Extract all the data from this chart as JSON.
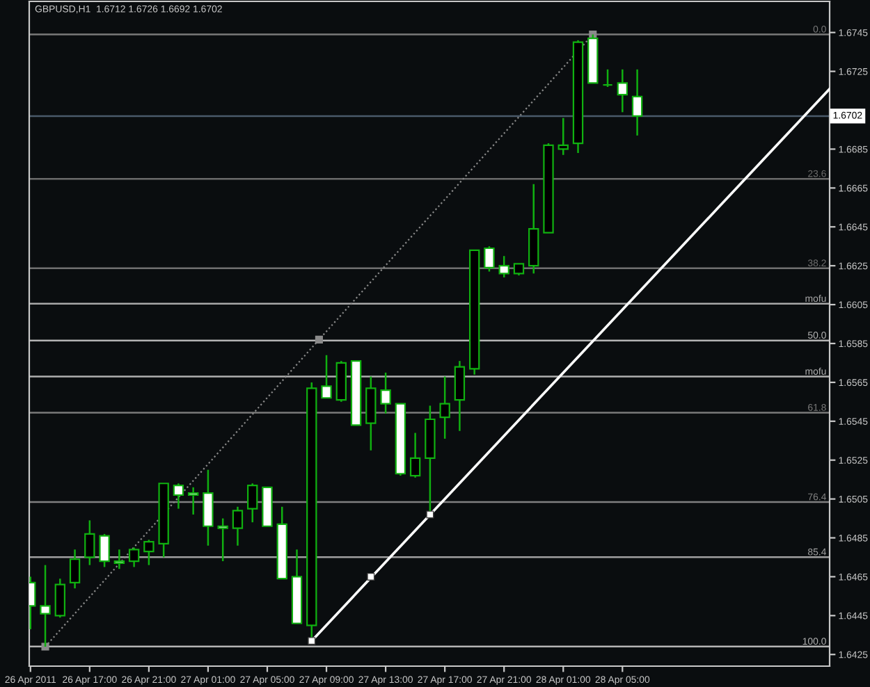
{
  "chart_data": {
    "type": "candlestick",
    "title": "GBPUSD,H1  1.6712 1.6726 1.6692 1.6702",
    "x": [
      "2011-04-26T13:00",
      "2011-04-26T14:00",
      "2011-04-26T15:00",
      "2011-04-26T16:00",
      "2011-04-26T17:00",
      "2011-04-26T18:00",
      "2011-04-26T19:00",
      "2011-04-26T20:00",
      "2011-04-26T21:00",
      "2011-04-26T22:00",
      "2011-04-26T23:00",
      "2011-04-27T00:00",
      "2011-04-27T01:00",
      "2011-04-27T02:00",
      "2011-04-27T03:00",
      "2011-04-27T04:00",
      "2011-04-27T05:00",
      "2011-04-27T06:00",
      "2011-04-27T07:00",
      "2011-04-27T08:00",
      "2011-04-27T09:00",
      "2011-04-27T10:00",
      "2011-04-27T11:00",
      "2011-04-27T12:00",
      "2011-04-27T13:00",
      "2011-04-27T14:00",
      "2011-04-27T15:00",
      "2011-04-27T16:00",
      "2011-04-27T17:00",
      "2011-04-27T18:00",
      "2011-04-27T19:00",
      "2011-04-27T20:00",
      "2011-04-27T21:00",
      "2011-04-27T22:00",
      "2011-04-27T23:00",
      "2011-04-28T00:00",
      "2011-04-28T01:00",
      "2011-04-28T02:00",
      "2011-04-28T03:00",
      "2011-04-28T04:00",
      "2011-04-28T05:00",
      "2011-04-28T06:00"
    ],
    "ohlc": [
      [
        1.6462,
        1.6465,
        1.6438,
        1.645
      ],
      [
        1.645,
        1.6471,
        1.6429,
        1.6446
      ],
      [
        1.6445,
        1.6464,
        1.6444,
        1.6461
      ],
      [
        1.6462,
        1.6479,
        1.6459,
        1.6474
      ],
      [
        1.6475,
        1.6494,
        1.6471,
        1.6487
      ],
      [
        1.6486,
        1.6487,
        1.647,
        1.6473
      ],
      [
        1.6473,
        1.6479,
        1.6469,
        1.6472
      ],
      [
        1.6473,
        1.648,
        1.647,
        1.6479
      ],
      [
        1.6478,
        1.6484,
        1.6471,
        1.6483
      ],
      [
        1.6482,
        1.6513,
        1.6475,
        1.6513
      ],
      [
        1.6512,
        1.6513,
        1.65,
        1.6507
      ],
      [
        1.6508,
        1.6511,
        1.6497,
        1.6507
      ],
      [
        1.6508,
        1.652,
        1.6481,
        1.6491
      ],
      [
        1.6491,
        1.6495,
        1.6473,
        1.649
      ],
      [
        1.649,
        1.6501,
        1.6481,
        1.6499
      ],
      [
        1.65,
        1.6513,
        1.6493,
        1.6512
      ],
      [
        1.6511,
        1.6511,
        1.6491,
        1.6491
      ],
      [
        1.6492,
        1.6501,
        1.6464,
        1.6464
      ],
      [
        1.6465,
        1.6479,
        1.6441,
        1.6441
      ],
      [
        1.644,
        1.6565,
        1.6432,
        1.6562
      ],
      [
        1.6563,
        1.6579,
        1.6557,
        1.6557
      ],
      [
        1.6556,
        1.6576,
        1.6555,
        1.6575
      ],
      [
        1.6576,
        1.6576,
        1.6543,
        1.6543
      ],
      [
        1.6544,
        1.6568,
        1.653,
        1.6562
      ],
      [
        1.6561,
        1.657,
        1.6549,
        1.6554
      ],
      [
        1.6554,
        1.6554,
        1.6517,
        1.6518
      ],
      [
        1.6517,
        1.6539,
        1.6516,
        1.6526
      ],
      [
        1.6526,
        1.6553,
        1.6497,
        1.6546
      ],
      [
        1.6547,
        1.6568,
        1.6536,
        1.6554
      ],
      [
        1.6556,
        1.6576,
        1.654,
        1.6573
      ],
      [
        1.6572,
        1.6633,
        1.6569,
        1.6633
      ],
      [
        1.6634,
        1.6635,
        1.6622,
        1.6624
      ],
      [
        1.6625,
        1.663,
        1.6619,
        1.6621
      ],
      [
        1.6621,
        1.6626,
        1.662,
        1.6626
      ],
      [
        1.6625,
        1.6667,
        1.6621,
        1.6644
      ],
      [
        1.6642,
        1.6688,
        1.6642,
        1.6687
      ],
      [
        1.6685,
        1.6701,
        1.6682,
        1.6687
      ],
      [
        1.6688,
        1.6741,
        1.6683,
        1.674
      ],
      [
        1.6742,
        1.6744,
        1.6719,
        1.6719
      ],
      [
        1.6718,
        1.6726,
        1.6717,
        1.6718
      ],
      [
        1.6719,
        1.6726,
        1.6704,
        1.6713
      ],
      [
        1.6712,
        1.6726,
        1.6692,
        1.6702
      ]
    ],
    "color": "#10b010",
    "colors": [
      "#ffffff",
      "#ffffff",
      "#000000",
      "#000000",
      "#000000",
      "#ffffff",
      "#ffffff",
      "#000000",
      "#000000",
      "#000000",
      "#ffffff",
      "#ffffff",
      "#ffffff",
      "#ffffff",
      "#000000",
      "#000000",
      "#ffffff",
      "#ffffff",
      "#ffffff",
      "#000000",
      "#ffffff",
      "#000000",
      "#ffffff",
      "#000000",
      "#ffffff",
      "#ffffff",
      "#000000",
      "#000000",
      "#000000",
      "#000000",
      "#000000",
      "#ffffff",
      "#ffffff",
      "#000000",
      "#000000",
      "#000000",
      "#000000",
      "#000000",
      "#ffffff",
      "#10b010",
      "#ffffff",
      "#ffffff"
    ],
    "series": [
      {
        "type": "line",
        "x": [
          "2011-04-26T14:00",
          "2011-04-27T08:30",
          "2011-04-28T03:00"
        ],
        "values": [
          1.6429,
          1.6587,
          1.6744
        ],
        "color": "#8a8a8a",
        "line_style": "dotted",
        "marker": "square"
      },
      {
        "type": "line",
        "x": [
          "2011-04-27T08:00",
          "2011-04-28T19:00"
        ],
        "values": [
          1.6432,
          1.6716
        ],
        "color": "#ffffff",
        "line_style": "solid",
        "marker": "none"
      },
      {
        "type": "scatter",
        "x": [
          "2011-04-27T08:00",
          "2011-04-27T12:00",
          "2011-04-27T16:00"
        ],
        "values": [
          1.6432,
          1.6465,
          1.6497
        ],
        "color": "#ffffff",
        "marker": "square"
      }
    ],
    "ref_lines": [
      {
        "axis": "y",
        "value": 1.6702,
        "label": "1.6702",
        "color": "#4a5a6a",
        "line_style": "solid"
      },
      {
        "axis": "y2",
        "value": 0.0,
        "label": "0.0",
        "color": "#7a7a7a",
        "line_style": "solid"
      },
      {
        "axis": "y2",
        "value": 23.6,
        "label": "23.6",
        "color": "#6a6a6a",
        "line_style": "solid"
      },
      {
        "axis": "y2",
        "value": 38.2,
        "label": "38.2",
        "color": "#707070",
        "line_style": "solid"
      },
      {
        "axis": "y2",
        "value": 44.0,
        "label": "mofu",
        "color": "#a8a8a8",
        "line_style": "solid"
      },
      {
        "axis": "y2",
        "value": 50.0,
        "label": "50.0",
        "color": "#b4b4b4",
        "line_style": "solid"
      },
      {
        "axis": "y2",
        "value": 55.9,
        "label": "mofu",
        "color": "#b0b0b0",
        "line_style": "solid"
      },
      {
        "axis": "y2",
        "value": 61.8,
        "label": "61.8",
        "color": "#7a7a7a",
        "line_style": "solid"
      },
      {
        "axis": "y2",
        "value": 76.4,
        "label": "76.4",
        "color": "#808080",
        "line_style": "solid"
      },
      {
        "axis": "y2",
        "value": 85.4,
        "label": "85.4",
        "color": "#a0a0a0",
        "line_style": "solid"
      },
      {
        "axis": "y2",
        "value": 100.0,
        "label": "100.0",
        "color": "#b4b4b4",
        "line_style": "solid"
      }
    ],
    "xlim": [
      "2011-04-26T12:55",
      "2011-04-28T19:00"
    ],
    "xticks": [
      {
        "value": "2011-04-26T13:00",
        "label": "26 Apr 2011"
      },
      {
        "value": "2011-04-26T17:00",
        "label": "26 Apr 17:00"
      },
      {
        "value": "2011-04-26T21:00",
        "label": "26 Apr 21:00"
      },
      {
        "value": "2011-04-27T01:00",
        "label": "27 Apr 01:00"
      },
      {
        "value": "2011-04-27T05:00",
        "label": "27 Apr 05:00"
      },
      {
        "value": "2011-04-27T09:00",
        "label": "27 Apr 09:00"
      },
      {
        "value": "2011-04-27T13:00",
        "label": "27 Apr 13:00"
      },
      {
        "value": "2011-04-27T17:00",
        "label": "27 Apr 17:00"
      },
      {
        "value": "2011-04-27T21:00",
        "label": "27 Apr 21:00"
      },
      {
        "value": "2011-04-28T01:00",
        "label": "28 Apr 01:00"
      },
      {
        "value": "2011-04-28T05:00",
        "label": "28 Apr 05:00"
      }
    ],
    "ylim": [
      1.6419,
      1.6761
    ],
    "yticks": [
      1.6425,
      1.6445,
      1.6465,
      1.6485,
      1.6505,
      1.6525,
      1.6545,
      1.6565,
      1.6585,
      1.6605,
      1.6625,
      1.6645,
      1.6665,
      1.6685,
      1.6725,
      1.6745
    ],
    "y2lim": [
      103.2,
      -5.4
    ]
  }
}
